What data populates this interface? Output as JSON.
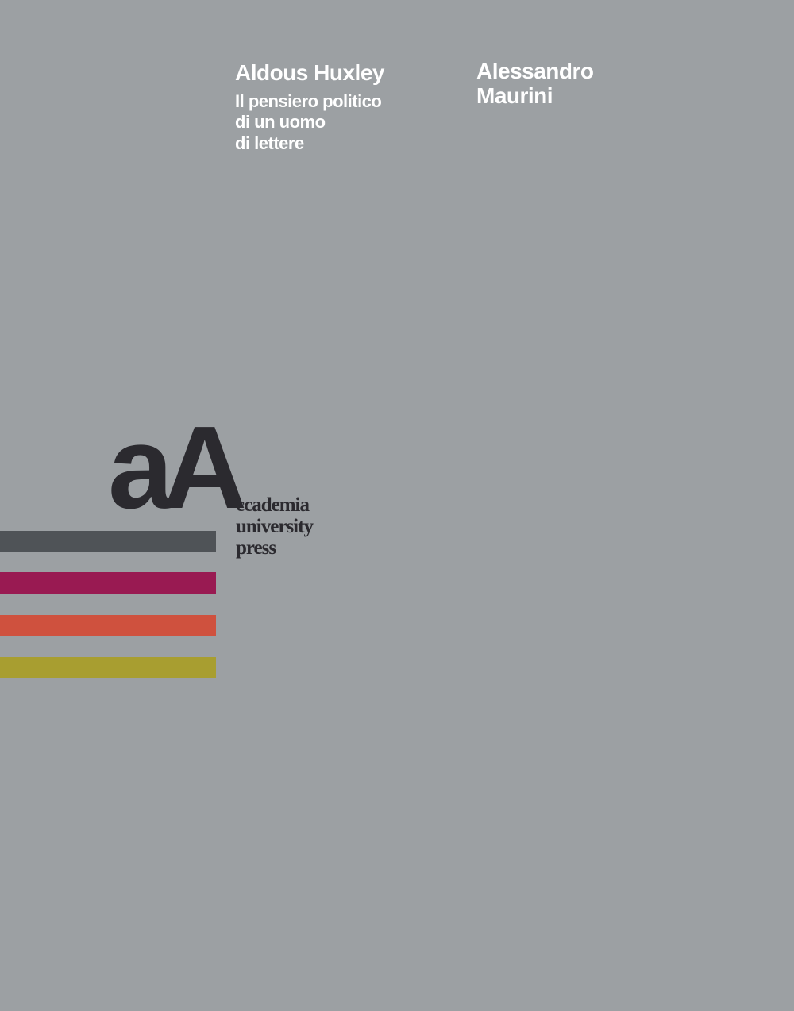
{
  "cover": {
    "title": "Aldous Huxley",
    "subtitle_lines": [
      "Il pensiero politico",
      "di un uomo",
      "di lettere"
    ],
    "author_lines": [
      "Alessandro",
      "Maurini"
    ]
  },
  "publisher": {
    "logo_mark": "aA",
    "name_lines": [
      "ccademia",
      "university",
      "press"
    ]
  },
  "colors": {
    "background": "#9ca0a3",
    "text": "#ffffff",
    "logo": "#2b2a2f",
    "bars": [
      "#4f5357",
      "#991a52",
      "#cf513e",
      "#a89e30"
    ]
  }
}
